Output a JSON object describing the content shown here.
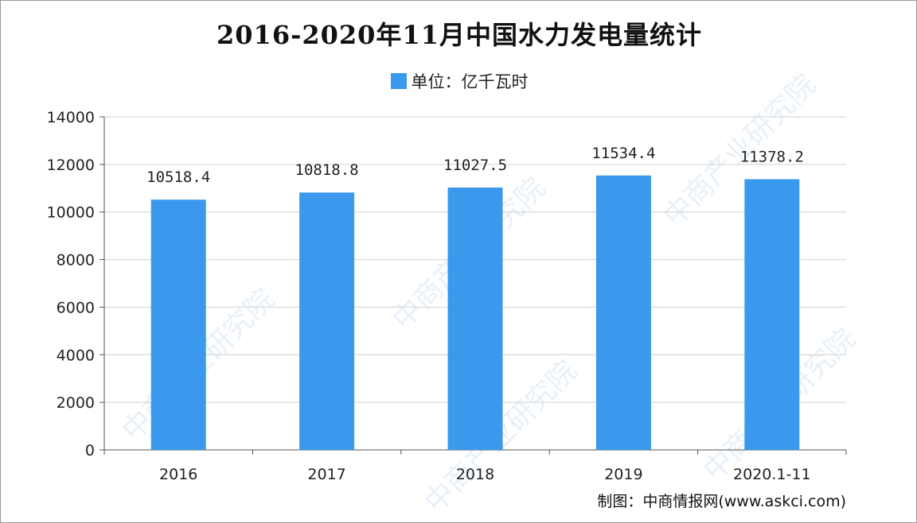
{
  "chart_data": {
    "type": "bar",
    "title": "2016-2020年11月中国水力发电量统计",
    "legend": {
      "label": "单位：亿千瓦时",
      "placement": "top-center",
      "color": "#3a99ec"
    },
    "categories": [
      "2016",
      "2017",
      "2018",
      "2019",
      "2020.1-11"
    ],
    "series": [
      {
        "name": "单位：亿千瓦时",
        "values": [
          10518.4,
          10818.8,
          11027.5,
          11534.4,
          11378.2
        ],
        "value_labels": [
          "10518.4",
          "10818.8",
          "11027.5",
          "11534.4",
          "11378.2"
        ],
        "color": "#3a99ec"
      }
    ],
    "ylim": [
      0,
      14000
    ],
    "yticks": [
      0,
      2000,
      4000,
      6000,
      8000,
      10000,
      12000,
      14000
    ],
    "ytick_labels": [
      "0",
      "2000",
      "4000",
      "6000",
      "8000",
      "10000",
      "12000",
      "14000"
    ],
    "xlabel": "",
    "ylabel": "",
    "grid": true,
    "gridline_color": "#d0d0d0"
  },
  "source_text": "制图：中商情报网(www.askci.com)",
  "watermark_text": "中商产业研究院"
}
